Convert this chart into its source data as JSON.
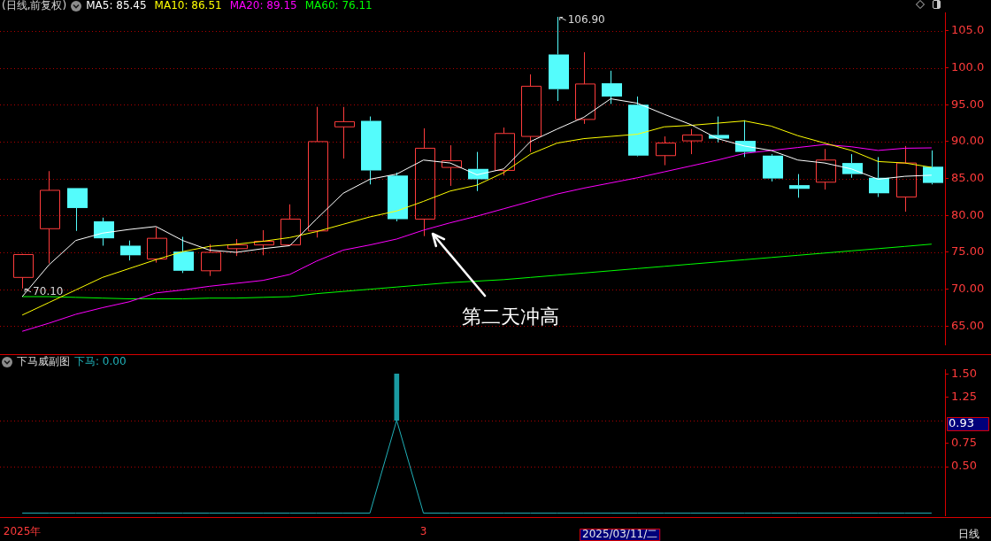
{
  "chart_data": [
    {
      "type": "candlestick",
      "title": "(日线,前复权)",
      "categories": [
        null,
        null,
        null,
        null,
        null,
        null,
        null,
        null,
        null,
        null,
        null,
        null,
        null,
        null,
        null,
        null,
        null,
        null,
        null,
        null,
        null,
        null,
        null,
        null,
        null,
        null,
        null,
        null,
        null,
        null,
        null,
        null,
        null,
        null,
        null
      ],
      "ohlc": [
        [
          71.6,
          74.8,
          70.1,
          74.7
        ],
        [
          78.2,
          86.0,
          73.5,
          83.4
        ],
        [
          83.7,
          83.7,
          77.9,
          81.0
        ],
        [
          79.2,
          79.7,
          75.9,
          76.9
        ],
        [
          75.9,
          76.6,
          73.9,
          74.6
        ],
        [
          74.1,
          78.4,
          73.6,
          76.9
        ],
        [
          75.1,
          77.1,
          72.2,
          72.5
        ],
        [
          72.5,
          76.1,
          71.8,
          75.0
        ],
        [
          75.5,
          76.8,
          74.5,
          76.0
        ],
        [
          76.0,
          78.0,
          74.6,
          76.5
        ],
        [
          76.0,
          81.5,
          76.0,
          79.5
        ],
        [
          77.9,
          94.7,
          77.0,
          90.0
        ],
        [
          92.0,
          94.7,
          87.7,
          92.7
        ],
        [
          92.8,
          93.4,
          84.2,
          86.1
        ],
        [
          85.4,
          85.8,
          79.2,
          79.5
        ],
        [
          79.5,
          91.8,
          77.2,
          89.1
        ],
        [
          86.5,
          89.5,
          84.0,
          87.4
        ],
        [
          86.3,
          88.6,
          83.3,
          84.9
        ],
        [
          86.1,
          91.9,
          85.4,
          91.1
        ],
        [
          90.7,
          99.1,
          88.6,
          97.5
        ],
        [
          101.8,
          106.9,
          95.5,
          97.1
        ],
        [
          93.0,
          102.1,
          92.4,
          97.8
        ],
        [
          97.9,
          99.6,
          95.1,
          96.1
        ],
        [
          95.0,
          96.1,
          88.0,
          88.1
        ],
        [
          88.1,
          90.7,
          86.8,
          89.8
        ],
        [
          90.1,
          91.7,
          88.3,
          90.9
        ],
        [
          90.9,
          93.4,
          89.9,
          90.4
        ],
        [
          90.1,
          92.9,
          87.9,
          88.6
        ],
        [
          88.1,
          88.3,
          84.6,
          85.0
        ],
        [
          84.1,
          85.6,
          82.4,
          83.6
        ],
        [
          84.5,
          89.0,
          83.5,
          87.5
        ],
        [
          87.1,
          88.3,
          85.1,
          85.6
        ],
        [
          85.1,
          87.9,
          82.5,
          83.0
        ],
        [
          82.5,
          89.4,
          80.5,
          87.1
        ],
        [
          86.6,
          88.8,
          84.2,
          84.4
        ]
      ],
      "colors": [
        "#ff3c3c",
        "#ff3c3c",
        "#54fcfc",
        "#54fcfc",
        "#54fcfc",
        "#ff3c3c",
        "#54fcfc",
        "#ff3c3c",
        "#ff3c3c",
        "#ff3c3c",
        "#ff3c3c",
        "#ff3c3c",
        "#ff3c3c",
        "#54fcfc",
        "#54fcfc",
        "#ff3c3c",
        "#ff3c3c",
        "#54fcfc",
        "#ff3c3c",
        "#ff3c3c",
        "#54fcfc",
        "#ff3c3c",
        "#54fcfc",
        "#54fcfc",
        "#ff3c3c",
        "#ff3c3c",
        "#54fcfc",
        "#54fcfc",
        "#54fcfc",
        "#54fcfc",
        "#ff3c3c",
        "#54fcfc",
        "#54fcfc",
        "#ff3c3c",
        "#54fcfc"
      ],
      "series": [
        {
          "type": "line",
          "name": "MA5: 85.45",
          "color": "#ffffff",
          "values": [
            69.0,
            73.3,
            76.6,
            77.6,
            78.1,
            78.5,
            76.6,
            75.3,
            75.0,
            75.5,
            75.9,
            79.5,
            83.0,
            84.9,
            85.6,
            87.5,
            87.1,
            85.5,
            86.3,
            90.0,
            91.7,
            93.3,
            95.8,
            95.2,
            93.7,
            92.3,
            90.4,
            89.4,
            88.8,
            87.5,
            87.1,
            86.3,
            84.9,
            85.3,
            85.45
          ]
        },
        {
          "type": "line",
          "name": "MA10: 86.51",
          "color": "#ffff00",
          "values": [
            66.5,
            68.2,
            69.9,
            71.6,
            72.8,
            74.0,
            75.1,
            75.8,
            76.1,
            76.5,
            77.0,
            77.8,
            78.8,
            79.8,
            80.6,
            81.9,
            83.3,
            84.1,
            85.8,
            88.3,
            89.8,
            90.4,
            90.7,
            91.0,
            92.0,
            92.2,
            92.5,
            92.8,
            92.1,
            90.8,
            89.8,
            88.8,
            87.3,
            87.1,
            86.51
          ]
        },
        {
          "type": "line",
          "name": "MA20: 89.15",
          "color": "#ff00ff",
          "values": [
            64.3,
            65.4,
            66.6,
            67.5,
            68.3,
            69.5,
            69.9,
            70.4,
            70.8,
            71.2,
            72.0,
            73.8,
            75.3,
            76.0,
            76.8,
            78.0,
            79.0,
            79.9,
            80.9,
            81.9,
            82.9,
            83.7,
            84.4,
            85.1,
            85.9,
            86.7,
            87.5,
            88.4,
            88.8,
            89.2,
            89.6,
            89.3,
            88.8,
            89.1,
            89.15
          ]
        },
        {
          "type": "line",
          "name": "MA60: 76.11",
          "color": "#00ff00",
          "values": [
            69.0,
            69.0,
            68.9,
            68.8,
            68.7,
            68.7,
            68.7,
            68.8,
            68.8,
            68.9,
            69.0,
            69.4,
            69.7,
            70.0,
            70.3,
            70.6,
            70.9,
            71.1,
            71.3,
            71.6,
            71.9,
            72.2,
            72.5,
            72.8,
            73.1,
            73.4,
            73.7,
            74.0,
            74.3,
            74.6,
            74.9,
            75.2,
            75.5,
            75.8,
            76.11
          ]
        }
      ],
      "ylim": [
        62.5,
        107.5
      ],
      "yticks": [
        {
          "value": 65,
          "label": "65.00"
        },
        {
          "value": 70,
          "label": "70.00"
        },
        {
          "value": 75,
          "label": "75.00"
        },
        {
          "value": 80,
          "label": "80.00"
        },
        {
          "value": 85,
          "label": "85.00"
        },
        {
          "value": 90,
          "label": "90.00"
        },
        {
          "value": 95,
          "label": "95.00"
        },
        {
          "value": 100,
          "label": "100.0"
        },
        {
          "value": 105,
          "label": "105.0"
        }
      ],
      "grid": "y",
      "legend": "top left",
      "tick_labels": "y",
      "annotations": [
        "106.90",
        "70.10",
        "第二天冲高"
      ]
    },
    {
      "type": "line",
      "title": "下马威副图",
      "categories": [
        "2025年",
        null,
        null,
        null,
        null,
        null,
        null,
        null,
        null,
        null,
        null,
        null,
        null,
        null,
        null,
        "3",
        null,
        null,
        null,
        null,
        null,
        null,
        null,
        null,
        null,
        null,
        null,
        null,
        null,
        null,
        null,
        null,
        null,
        null,
        null
      ],
      "series": [
        {
          "name": "下马: 0.00",
          "color": "#20b0b8",
          "values": [
            0,
            0,
            0,
            0,
            0,
            0,
            0,
            0,
            0,
            0,
            0,
            0,
            0,
            0,
            1,
            0,
            0,
            0,
            0,
            0,
            0,
            0,
            0,
            0,
            0,
            0,
            0,
            0,
            0,
            0,
            0,
            0,
            0,
            0,
            0
          ]
        },
        {
          "type": "bar",
          "color": "#1a9aa2",
          "values": [
            null,
            null,
            null,
            null,
            null,
            null,
            null,
            null,
            null,
            null,
            null,
            null,
            null,
            null,
            0.5,
            null,
            null,
            null,
            null,
            null,
            null,
            null,
            null,
            null,
            null,
            null,
            null,
            null,
            null,
            null,
            null,
            null,
            null,
            null,
            null
          ],
          "base": [
            null,
            null,
            null,
            null,
            null,
            null,
            null,
            null,
            null,
            null,
            null,
            null,
            null,
            null,
            1.0,
            null,
            null,
            null,
            null,
            null,
            null,
            null,
            null,
            null,
            null,
            null,
            null,
            null,
            null,
            null,
            null,
            null,
            null,
            null,
            null
          ]
        }
      ],
      "ylim": [
        -0.03,
        1.55
      ],
      "yticks": [
        {
          "value": 0.5,
          "label": "0.50"
        },
        0.75,
        1.25,
        {
          "value": 1.5,
          "label": "1.50"
        }
      ],
      "ref_lines": [
        {
          "axis": "y",
          "value": 1.0,
          "color": "#b00000",
          "line_style": "dotted"
        },
        {
          "axis": "y",
          "value": 0.5,
          "color": "#b00000",
          "line_style": "dotted"
        }
      ],
      "legend": "top left",
      "annotations": [
        "0.93",
        "2025/03/11/二",
        "日线"
      ]
    }
  ]
}
